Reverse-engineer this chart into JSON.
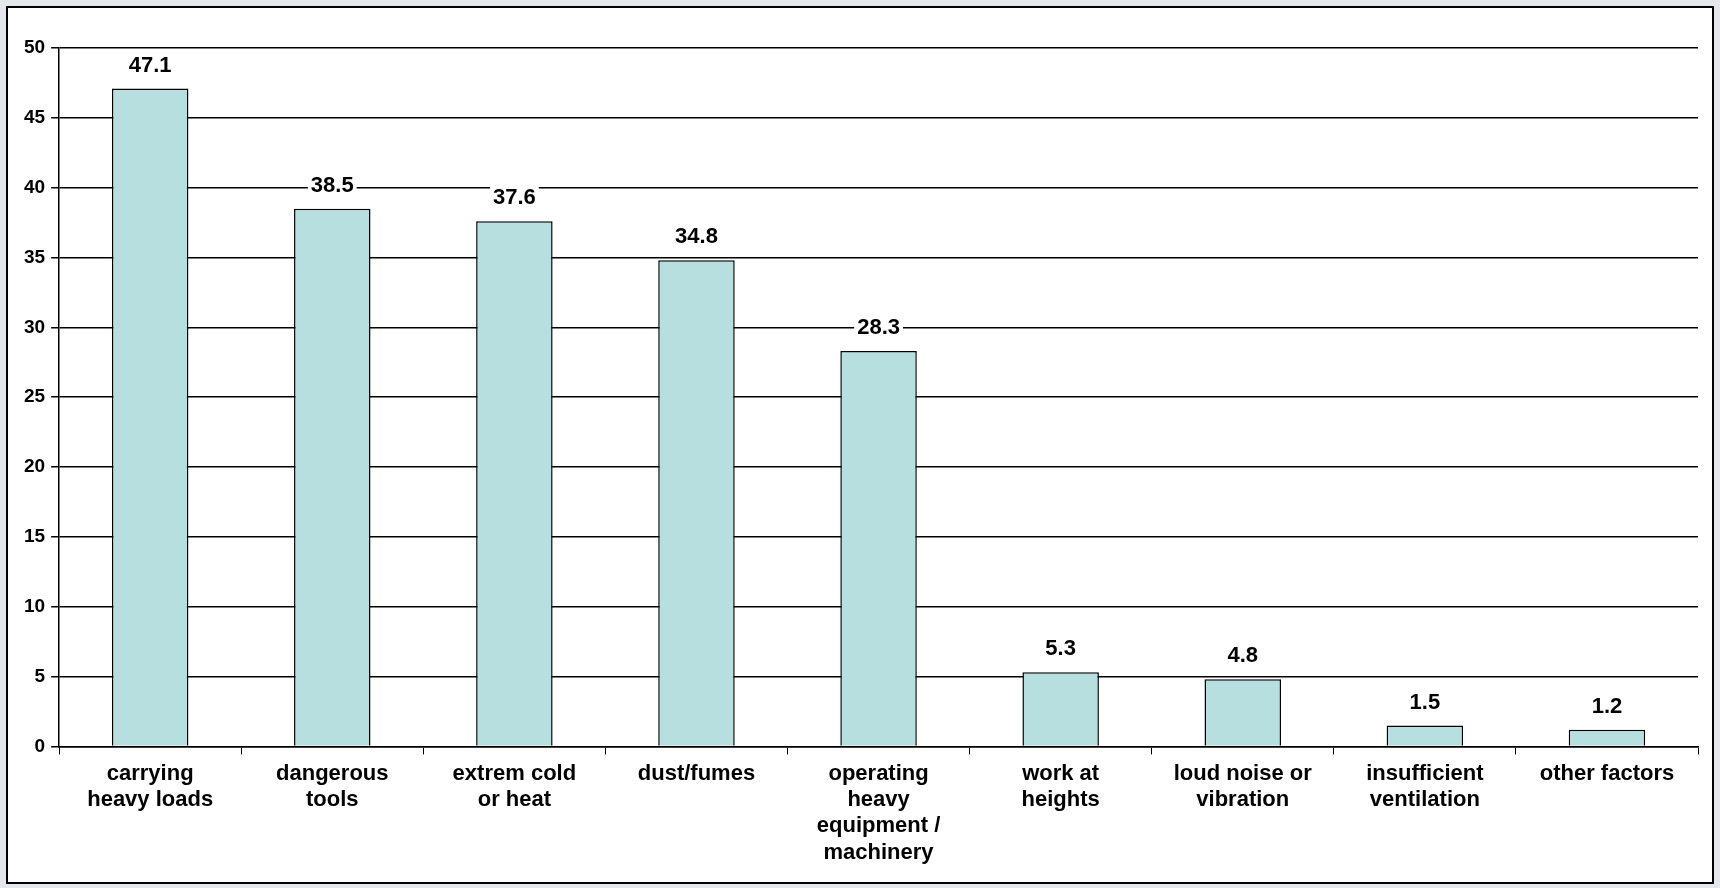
{
  "chart_data": {
    "type": "bar",
    "categories": [
      "carrying heavy loads",
      "dangerous tools",
      "extrem cold or heat",
      "dust/fumes",
      "operating heavy equipment / machinery",
      "work at heights",
      "loud noise or vibration",
      "insufficient ventilation",
      "other factors"
    ],
    "values": [
      47.1,
      38.5,
      37.6,
      34.8,
      28.3,
      5.3,
      4.8,
      1.5,
      1.2
    ],
    "color": "#b8dfe0",
    "ylim": [
      0,
      50
    ],
    "yticks": [
      0,
      5,
      10,
      15,
      20,
      25,
      30,
      35,
      40,
      45,
      50
    ],
    "grid": "y",
    "legend": false,
    "data_labels": true
  }
}
